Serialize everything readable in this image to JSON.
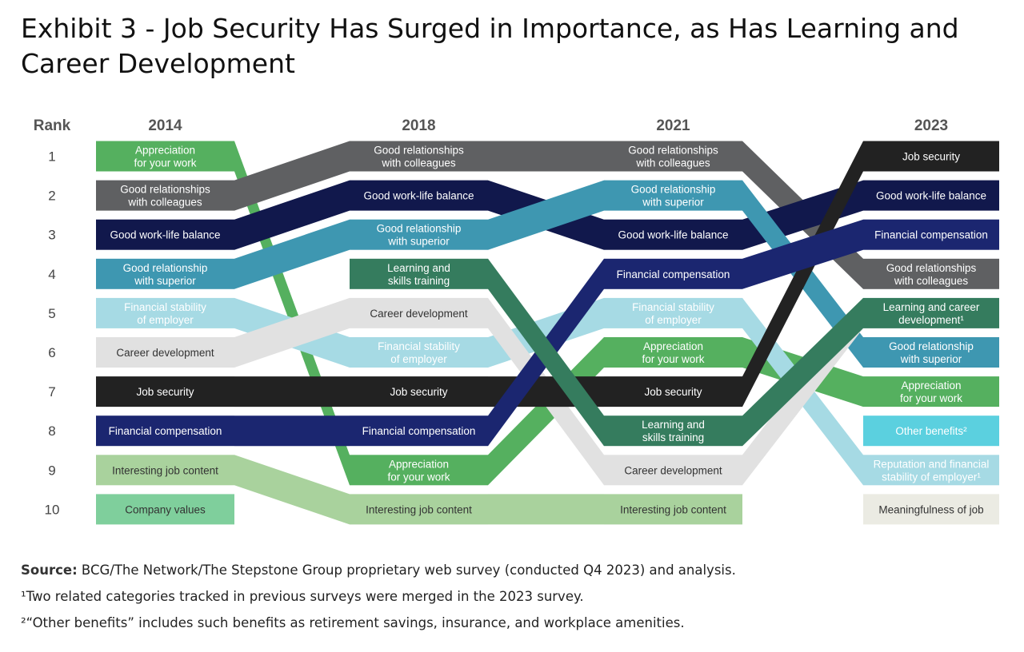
{
  "title": "Exhibit 3 - Job Security Has Surged in Importance, as Has Learning and Career Development",
  "footnotes": {
    "source_label": "Source:",
    "source_text": " BCG/The Network/The Stepstone Group proprietary web survey (conducted Q4 2023) and analysis.",
    "note1": "¹Two related categories tracked in previous surveys were merged in the 2023 survey.",
    "note2": "²“Other benefits” includes such benefits as retirement savings, insurance, and workplace amenities."
  },
  "chart_data": {
    "type": "bump",
    "title": "Exhibit 3 - Job Security Has Surged in Importance, as Has Learning and Career Development",
    "rank_label": "Rank",
    "years": [
      "2014",
      "2018",
      "2021",
      "2023"
    ],
    "ranks": [
      1,
      2,
      3,
      4,
      5,
      6,
      7,
      8,
      9,
      10
    ],
    "colors": {
      "appreciation": "#55b05f",
      "colleagues": "#5f6062",
      "worklife": "#11184c",
      "superior": "#3e97b1",
      "stability": "#a6dae4",
      "career": "#e1e1e1",
      "security": "#222222",
      "compensation": "#1b2670",
      "content": "#a9d29d",
      "values": "#7fcf9c",
      "learning": "#357c5e",
      "other": "#5bd0df",
      "meaning": "#ebebe3"
    },
    "series": [
      {
        "key": "appreciation",
        "color": "appreciation",
        "textColor": "#ffffff",
        "ranks": [
          1,
          9,
          6,
          7
        ],
        "labels": [
          "Appreciation for your work",
          "Appreciation for your work",
          "Appreciation for your work",
          "Appreciation for your work"
        ]
      },
      {
        "key": "colleagues",
        "color": "colleagues",
        "textColor": "#ffffff",
        "ranks": [
          2,
          1,
          1,
          4
        ],
        "labels": [
          "Good relationships with colleagues",
          "Good relationships with colleagues",
          "Good relationships with colleagues",
          "Good relationships with colleagues"
        ]
      },
      {
        "key": "worklife",
        "color": "worklife",
        "textColor": "#ffffff",
        "ranks": [
          3,
          2,
          3,
          2
        ],
        "labels": [
          "Good work-life balance",
          "Good work-life balance",
          "Good work-life balance",
          "Good work-life balance"
        ]
      },
      {
        "key": "superior",
        "color": "superior",
        "textColor": "#ffffff",
        "ranks": [
          4,
          3,
          2,
          6
        ],
        "labels": [
          "Good relationship with superior",
          "Good relationship with superior",
          "Good relationship with superior",
          "Good relationship with superior"
        ]
      },
      {
        "key": "stability",
        "color": "stability",
        "textColor": "#ffffff",
        "ranks": [
          5,
          6,
          5,
          9
        ],
        "labels": [
          "Financial stability of employer",
          "Financial stability of employer",
          "Financial stability of employer",
          "Reputation and financial stability of employer¹"
        ]
      },
      {
        "key": "career",
        "color": "career",
        "textColor": "#333333",
        "ranks": [
          6,
          5,
          9,
          null
        ],
        "labels": [
          "Career development",
          "Career development",
          "Career development",
          null
        ],
        "end_link": 5
      },
      {
        "key": "security",
        "color": "security",
        "textColor": "#ffffff",
        "ranks": [
          7,
          7,
          7,
          1
        ],
        "labels": [
          "Job security",
          "Job security",
          "Job security",
          "Job security"
        ]
      },
      {
        "key": "compensation",
        "color": "compensation",
        "textColor": "#ffffff",
        "ranks": [
          8,
          8,
          4,
          3
        ],
        "labels": [
          "Financial compensation",
          "Financial compensation",
          "Financial compensation",
          "Financial compensation"
        ]
      },
      {
        "key": "content",
        "color": "content",
        "textColor": "#333333",
        "ranks": [
          9,
          10,
          10,
          null
        ],
        "labels": [
          "Interesting job content",
          "Interesting job content",
          "Interesting job content",
          null
        ]
      },
      {
        "key": "values",
        "color": "values",
        "textColor": "#333333",
        "ranks": [
          10,
          null,
          null,
          null
        ],
        "labels": [
          "Company values",
          null,
          null,
          null
        ]
      },
      {
        "key": "learning",
        "color": "learning",
        "textColor": "#ffffff",
        "ranks": [
          null,
          4,
          8,
          5
        ],
        "labels": [
          null,
          "Learning and skills training",
          "Learning and skills training",
          "Learning and career development¹"
        ]
      },
      {
        "key": "other",
        "color": "other",
        "textColor": "#ffffff",
        "ranks": [
          null,
          null,
          null,
          8
        ],
        "labels": [
          null,
          null,
          null,
          "Other benefits²"
        ]
      },
      {
        "key": "meaning",
        "color": "meaning",
        "textColor": "#333333",
        "ranks": [
          null,
          null,
          null,
          10
        ],
        "labels": [
          null,
          null,
          null,
          "Meaningfulness of job"
        ]
      }
    ]
  }
}
